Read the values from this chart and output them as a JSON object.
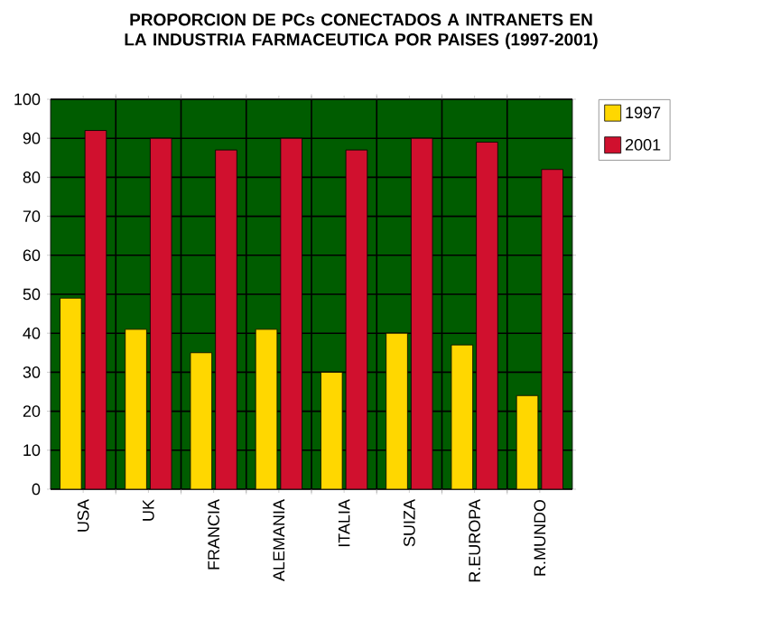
{
  "chart_data": {
    "type": "bar",
    "title": "PROPORCION DE PCs CONECTADOS A INTRANETS EN LA INDUSTRIA FARMACEUTICA POR PAISES (1997-2001)",
    "categories": [
      "USA",
      "UK",
      "FRANCIA",
      "ALEMANIA",
      "ITALIA",
      "SUIZA",
      "R.EUROPA",
      "R.MUNDO"
    ],
    "series": [
      {
        "name": "1997",
        "color": "#ffd700",
        "values": [
          49,
          41,
          35,
          41,
          30,
          40,
          37,
          24
        ]
      },
      {
        "name": "2001",
        "color": "#d0102e",
        "values": [
          92,
          90,
          87,
          90,
          87,
          90,
          89,
          82
        ]
      }
    ],
    "ylim": [
      0,
      100
    ],
    "yticks": [
      0,
      10,
      20,
      30,
      40,
      50,
      60,
      70,
      80,
      90,
      100
    ],
    "grid": true,
    "legend": "top right"
  }
}
